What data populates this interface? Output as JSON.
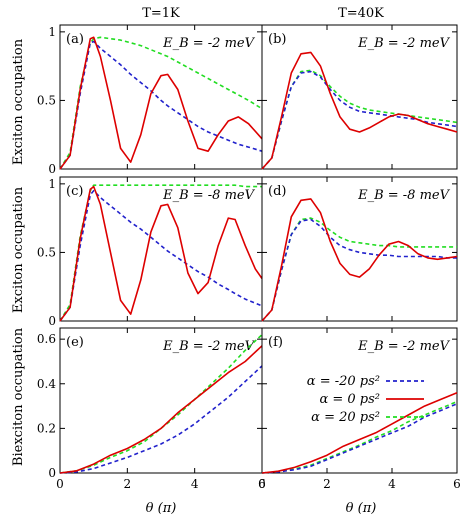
{
  "column_titles": [
    "T=1K",
    "T=40K"
  ],
  "row_ylabels": [
    "Exciton occupation",
    "Exciton occupation",
    "Biexciton occupation"
  ],
  "xlabel": "θ (π)",
  "legend": [
    {
      "label": "α = -20 ps²",
      "color": "#2222cc",
      "dash": "dashed"
    },
    {
      "label": "α = 0 ps²",
      "color": "#dd0000",
      "dash": "solid"
    },
    {
      "label": "α = 20 ps²",
      "color": "#22dd22",
      "dash": "dashed"
    }
  ],
  "legend_placement": "right-middle of panel (f)",
  "chart_data": [
    {
      "panel": "(a)",
      "type": "line",
      "eb": "E_B = -2 meV",
      "xlim": [
        0,
        6
      ],
      "ylim": [
        0,
        1.05
      ],
      "yticks": [
        0,
        0.5,
        1
      ],
      "xticks": [
        0,
        2,
        4,
        6
      ],
      "x": [
        0,
        0.3,
        0.6,
        0.9,
        1.0,
        1.2,
        1.5,
        1.8,
        2.1,
        2.4,
        2.7,
        3.0,
        3.2,
        3.5,
        3.8,
        4.1,
        4.4,
        4.7,
        5.0,
        5.3,
        5.6,
        6.0
      ],
      "series": [
        {
          "values": [
            0,
            0.1,
            0.55,
            0.92,
            0.93,
            0.88,
            0.82,
            0.76,
            0.69,
            0.63,
            0.57,
            0.5,
            0.46,
            0.41,
            0.36,
            0.31,
            0.27,
            0.24,
            0.21,
            0.18,
            0.16,
            0.13
          ]
        },
        {
          "values": [
            0,
            0.1,
            0.58,
            0.95,
            0.96,
            0.82,
            0.5,
            0.15,
            0.05,
            0.25,
            0.55,
            0.68,
            0.69,
            0.58,
            0.35,
            0.15,
            0.13,
            0.25,
            0.35,
            0.38,
            0.33,
            0.22
          ]
        },
        {
          "values": [
            0,
            0.12,
            0.6,
            0.92,
            0.95,
            0.96,
            0.95,
            0.94,
            0.92,
            0.9,
            0.87,
            0.84,
            0.82,
            0.78,
            0.74,
            0.7,
            0.66,
            0.62,
            0.58,
            0.54,
            0.5,
            0.44
          ]
        }
      ]
    },
    {
      "panel": "(b)",
      "type": "line",
      "eb": "E_B = -2 meV",
      "xlim": [
        0,
        6
      ],
      "ylim": [
        0,
        1.05
      ],
      "yticks": [
        0,
        0.5,
        1
      ],
      "xticks": [
        0,
        2,
        4,
        6
      ],
      "x": [
        0,
        0.3,
        0.6,
        0.9,
        1.2,
        1.5,
        1.8,
        2.1,
        2.4,
        2.7,
        3.0,
        3.3,
        3.6,
        3.9,
        4.2,
        4.5,
        4.8,
        5.1,
        5.4,
        5.7,
        6.0
      ],
      "series": [
        {
          "values": [
            0,
            0.08,
            0.35,
            0.6,
            0.7,
            0.71,
            0.67,
            0.58,
            0.5,
            0.45,
            0.42,
            0.41,
            0.4,
            0.39,
            0.38,
            0.37,
            0.36,
            0.34,
            0.33,
            0.32,
            0.31
          ]
        },
        {
          "values": [
            0,
            0.08,
            0.38,
            0.7,
            0.84,
            0.85,
            0.75,
            0.55,
            0.38,
            0.29,
            0.27,
            0.3,
            0.34,
            0.38,
            0.4,
            0.39,
            0.36,
            0.33,
            0.31,
            0.29,
            0.27
          ]
        },
        {
          "values": [
            0,
            0.08,
            0.35,
            0.6,
            0.71,
            0.72,
            0.68,
            0.6,
            0.53,
            0.48,
            0.45,
            0.43,
            0.42,
            0.41,
            0.4,
            0.39,
            0.38,
            0.37,
            0.36,
            0.35,
            0.34
          ]
        }
      ]
    },
    {
      "panel": "(c)",
      "type": "line",
      "eb": "E_B = -8 meV",
      "xlim": [
        0,
        6
      ],
      "ylim": [
        0,
        1.05
      ],
      "yticks": [
        0,
        0.5,
        1
      ],
      "xticks": [
        0,
        2,
        4,
        6
      ],
      "x": [
        0,
        0.3,
        0.6,
        0.9,
        1.0,
        1.2,
        1.5,
        1.8,
        2.1,
        2.4,
        2.7,
        3.0,
        3.2,
        3.5,
        3.8,
        4.1,
        4.4,
        4.7,
        5.0,
        5.2,
        5.5,
        5.8,
        6.0
      ],
      "series": [
        {
          "values": [
            0,
            0.1,
            0.55,
            0.92,
            0.95,
            0.9,
            0.84,
            0.78,
            0.72,
            0.67,
            0.61,
            0.55,
            0.51,
            0.46,
            0.41,
            0.36,
            0.32,
            0.27,
            0.23,
            0.2,
            0.16,
            0.13,
            0.11
          ]
        },
        {
          "values": [
            0,
            0.1,
            0.6,
            0.96,
            0.98,
            0.85,
            0.5,
            0.15,
            0.05,
            0.3,
            0.65,
            0.84,
            0.85,
            0.68,
            0.35,
            0.2,
            0.28,
            0.55,
            0.75,
            0.74,
            0.55,
            0.38,
            0.31
          ]
        },
        {
          "values": [
            0,
            0.12,
            0.62,
            0.95,
            0.99,
            0.99,
            0.99,
            0.99,
            0.99,
            0.99,
            0.99,
            0.99,
            0.99,
            0.99,
            0.99,
            0.99,
            0.99,
            0.99,
            0.99,
            0.99,
            0.98,
            0.98,
            0.98
          ]
        }
      ]
    },
    {
      "panel": "(d)",
      "type": "line",
      "eb": "E_B = -8 meV",
      "xlim": [
        0,
        6
      ],
      "ylim": [
        0,
        1.05
      ],
      "yticks": [
        0,
        0.5,
        1
      ],
      "xticks": [
        0,
        2,
        4,
        6
      ],
      "x": [
        0,
        0.3,
        0.6,
        0.9,
        1.2,
        1.5,
        1.8,
        2.1,
        2.4,
        2.7,
        3.0,
        3.3,
        3.6,
        3.9,
        4.2,
        4.5,
        4.8,
        5.1,
        5.4,
        5.7,
        6.0
      ],
      "series": [
        {
          "values": [
            0,
            0.08,
            0.37,
            0.63,
            0.73,
            0.74,
            0.69,
            0.61,
            0.55,
            0.52,
            0.5,
            0.49,
            0.48,
            0.48,
            0.47,
            0.47,
            0.47,
            0.47,
            0.47,
            0.46,
            0.46
          ]
        },
        {
          "values": [
            0,
            0.08,
            0.4,
            0.76,
            0.88,
            0.89,
            0.79,
            0.58,
            0.42,
            0.34,
            0.32,
            0.38,
            0.48,
            0.56,
            0.58,
            0.55,
            0.49,
            0.46,
            0.45,
            0.46,
            0.47
          ]
        },
        {
          "values": [
            0,
            0.08,
            0.37,
            0.63,
            0.74,
            0.75,
            0.72,
            0.66,
            0.61,
            0.58,
            0.57,
            0.56,
            0.55,
            0.55,
            0.54,
            0.54,
            0.54,
            0.54,
            0.54,
            0.54,
            0.54
          ]
        }
      ]
    },
    {
      "panel": "(e)",
      "type": "line",
      "eb": "E_B = -2 meV",
      "xlim": [
        0,
        6
      ],
      "ylim": [
        0,
        0.65
      ],
      "yticks": [
        0,
        0.2,
        0.4,
        0.6
      ],
      "xticks": [
        0,
        2,
        4,
        6
      ],
      "x": [
        0,
        0.5,
        1.0,
        1.5,
        2.0,
        2.5,
        3.0,
        3.5,
        4.0,
        4.5,
        5.0,
        5.5,
        6.0
      ],
      "series": [
        {
          "values": [
            0,
            0.005,
            0.02,
            0.045,
            0.07,
            0.1,
            0.13,
            0.17,
            0.22,
            0.28,
            0.34,
            0.41,
            0.48
          ]
        },
        {
          "values": [
            0,
            0.01,
            0.04,
            0.08,
            0.11,
            0.15,
            0.2,
            0.27,
            0.33,
            0.39,
            0.45,
            0.5,
            0.57
          ]
        },
        {
          "values": [
            0,
            0.01,
            0.035,
            0.07,
            0.1,
            0.14,
            0.2,
            0.26,
            0.33,
            0.4,
            0.47,
            0.55,
            0.62
          ]
        }
      ]
    },
    {
      "panel": "(f)",
      "type": "line",
      "eb": "E_B = -2 meV",
      "xlim": [
        0,
        6
      ],
      "ylim": [
        0,
        0.65
      ],
      "yticks": [
        0,
        0.2,
        0.4,
        0.6
      ],
      "xticks": [
        0,
        2,
        4,
        6
      ],
      "x": [
        0,
        0.5,
        1.0,
        1.5,
        2.0,
        2.5,
        3.0,
        3.5,
        4.0,
        4.5,
        5.0,
        5.5,
        6.0
      ],
      "series": [
        {
          "values": [
            0,
            0.005,
            0.015,
            0.03,
            0.06,
            0.09,
            0.12,
            0.15,
            0.18,
            0.21,
            0.25,
            0.28,
            0.31
          ]
        },
        {
          "values": [
            0,
            0.008,
            0.025,
            0.05,
            0.08,
            0.12,
            0.15,
            0.18,
            0.22,
            0.26,
            0.3,
            0.33,
            0.36
          ]
        },
        {
          "values": [
            0,
            0.006,
            0.018,
            0.035,
            0.065,
            0.095,
            0.125,
            0.16,
            0.19,
            0.23,
            0.26,
            0.29,
            0.32
          ]
        }
      ]
    }
  ]
}
